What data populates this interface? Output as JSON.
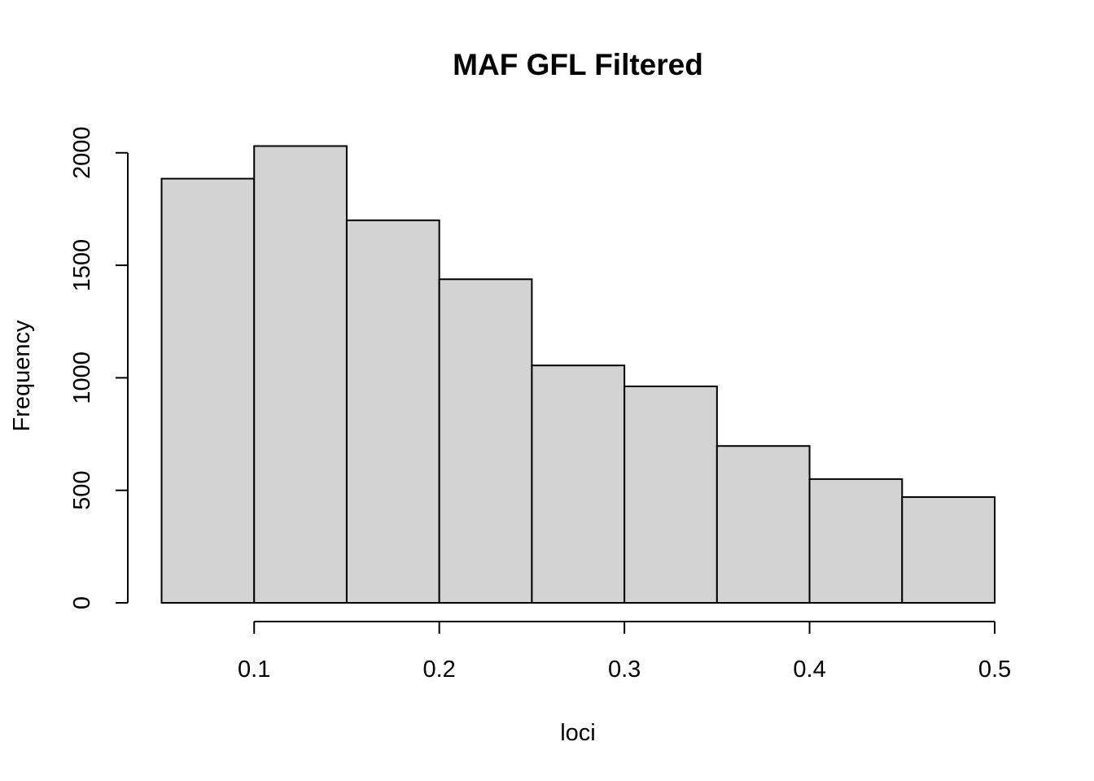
{
  "chart_data": {
    "type": "bar",
    "title": "MAF GFL Filtered",
    "xlabel": "loci",
    "ylabel": "Frequency",
    "bin_edges": [
      0.05,
      0.1,
      0.15,
      0.2,
      0.25,
      0.3,
      0.35,
      0.4,
      0.45,
      0.5
    ],
    "values": [
      1885,
      2030,
      1700,
      1438,
      1055,
      962,
      697,
      550,
      470
    ],
    "x_ticks": [
      0.1,
      0.2,
      0.3,
      0.4,
      0.5
    ],
    "x_tick_labels": [
      "0.1",
      "0.2",
      "0.3",
      "0.4",
      "0.5"
    ],
    "y_ticks": [
      0,
      500,
      1000,
      1500,
      2000
    ],
    "y_tick_labels": [
      "0",
      "500",
      "1000",
      "1500",
      "2000"
    ],
    "xlim": [
      0.05,
      0.5
    ],
    "ylim": [
      0,
      2000
    ],
    "bar_color": "#d3d3d3",
    "grid": false
  }
}
